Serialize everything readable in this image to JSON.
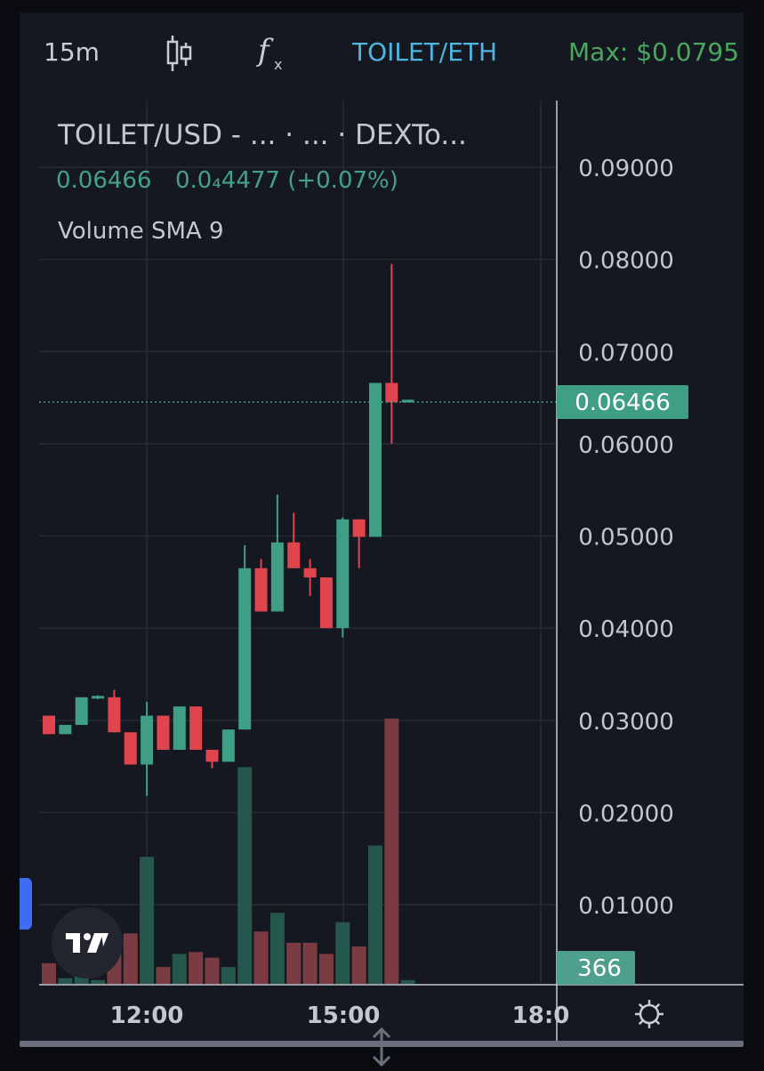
{
  "toolbar": {
    "interval": "15m",
    "candle_icon": "candlestick-icon",
    "fx_icon": "function-icon",
    "pair": "TOILET/ETH",
    "max": "Max: $0.0795"
  },
  "legend": {
    "title": "TOILET/USD - ...  · ...  · DEXTo...",
    "price": "0.06466",
    "change": "0.0₄4477 (+0.07%)",
    "indicator": "Volume SMA 9"
  },
  "badges": {
    "last_price": "0.06466",
    "volume": "366"
  },
  "colors": {
    "up": "#3f9f85",
    "down": "#e0454e",
    "vol_up": "#26574d",
    "vol_down": "#7a3c42",
    "max_text": "#4aa760",
    "pair_text": "#4fb6e0",
    "last_line": "#43a08c"
  },
  "chart_data": {
    "type": "candlestick",
    "y_ticks": [
      "0.09000",
      "0.08000",
      "0.07000",
      "0.06000",
      "0.05000",
      "0.04000",
      "0.03000",
      "0.02000",
      "0.01000"
    ],
    "x_ticks": [
      "12:00",
      "15:00",
      "18:0"
    ],
    "y_range": [
      0.0,
      0.095
    ],
    "grid": true,
    "candles": [
      {
        "o": 0.0305,
        "h": 0.0305,
        "l": 0.0285,
        "c": 0.0285
      },
      {
        "o": 0.0285,
        "h": 0.0295,
        "l": 0.0285,
        "c": 0.0295
      },
      {
        "o": 0.0295,
        "h": 0.0325,
        "l": 0.0295,
        "c": 0.0325
      },
      {
        "o": 0.0325,
        "h": 0.0327,
        "l": 0.0323,
        "c": 0.0325
      },
      {
        "o": 0.0325,
        "h": 0.0333,
        "l": 0.0287,
        "c": 0.0287
      },
      {
        "o": 0.0287,
        "h": 0.0287,
        "l": 0.0252,
        "c": 0.0252
      },
      {
        "o": 0.0252,
        "h": 0.032,
        "l": 0.0218,
        "c": 0.0305
      },
      {
        "o": 0.0305,
        "h": 0.0305,
        "l": 0.0268,
        "c": 0.0268
      },
      {
        "o": 0.0268,
        "h": 0.0315,
        "l": 0.0268,
        "c": 0.0315
      },
      {
        "o": 0.0315,
        "h": 0.0315,
        "l": 0.0268,
        "c": 0.0268
      },
      {
        "o": 0.0268,
        "h": 0.0268,
        "l": 0.0248,
        "c": 0.0255
      },
      {
        "o": 0.0255,
        "h": 0.029,
        "l": 0.0255,
        "c": 0.029
      },
      {
        "o": 0.029,
        "h": 0.049,
        "l": 0.029,
        "c": 0.0465
      },
      {
        "o": 0.0465,
        "h": 0.0475,
        "l": 0.0418,
        "c": 0.0418
      },
      {
        "o": 0.0418,
        "h": 0.0545,
        "l": 0.0418,
        "c": 0.0493
      },
      {
        "o": 0.0493,
        "h": 0.0525,
        "l": 0.0465,
        "c": 0.0465
      },
      {
        "o": 0.0465,
        "h": 0.0475,
        "l": 0.0435,
        "c": 0.0455
      },
      {
        "o": 0.0455,
        "h": 0.0455,
        "l": 0.04,
        "c": 0.04
      },
      {
        "o": 0.04,
        "h": 0.052,
        "l": 0.039,
        "c": 0.0518
      },
      {
        "o": 0.0518,
        "h": 0.0518,
        "l": 0.0465,
        "c": 0.0499
      },
      {
        "o": 0.0499,
        "h": 0.0666,
        "l": 0.0499,
        "c": 0.0666
      },
      {
        "o": 0.0666,
        "h": 0.0795,
        "l": 0.06,
        "c": 0.0645
      },
      {
        "o": 0.0646,
        "h": 0.0648,
        "l": 0.0645,
        "c": 0.06466
      }
    ],
    "volumes": [
      {
        "v": 0.11,
        "up": false
      },
      {
        "v": 0.03,
        "up": true
      },
      {
        "v": 0.1,
        "up": true
      },
      {
        "v": 0.02,
        "up": true
      },
      {
        "v": 0.16,
        "up": false
      },
      {
        "v": 0.27,
        "up": false
      },
      {
        "v": 0.68,
        "up": true
      },
      {
        "v": 0.09,
        "up": false
      },
      {
        "v": 0.16,
        "up": true
      },
      {
        "v": 0.17,
        "up": false
      },
      {
        "v": 0.14,
        "up": false
      },
      {
        "v": 0.09,
        "up": true
      },
      {
        "v": 1.16,
        "up": true
      },
      {
        "v": 0.28,
        "up": false
      },
      {
        "v": 0.38,
        "up": true
      },
      {
        "v": 0.22,
        "up": false
      },
      {
        "v": 0.22,
        "up": false
      },
      {
        "v": 0.16,
        "up": false
      },
      {
        "v": 0.33,
        "up": true
      },
      {
        "v": 0.2,
        "up": false
      },
      {
        "v": 0.74,
        "up": true
      },
      {
        "v": 1.42,
        "up": false
      },
      {
        "v": 0.02,
        "up": true
      }
    ]
  }
}
